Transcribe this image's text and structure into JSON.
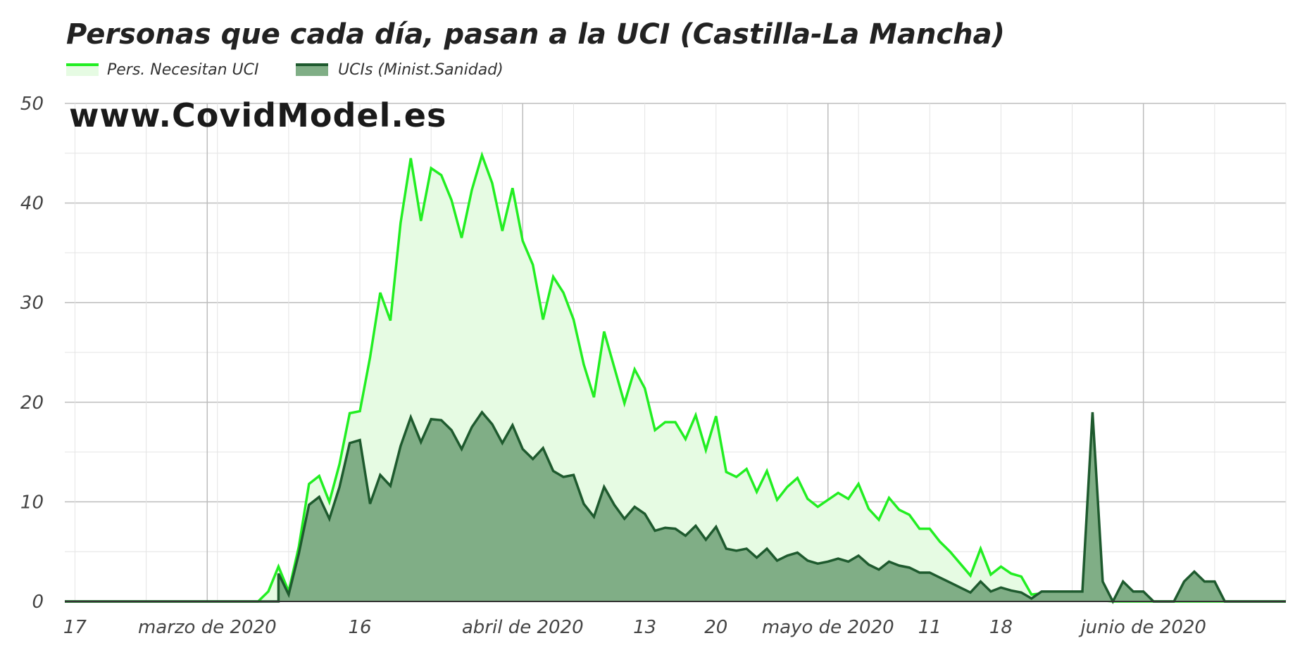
{
  "chart_data": {
    "type": "area",
    "title": "Personas que cada día, pasan a la UCI (Castilla-La Mancha)",
    "watermark": "www.CovidModel.es",
    "xlabel": "",
    "ylabel": "",
    "ylim": [
      0,
      50
    ],
    "yticks": [
      0,
      10,
      20,
      30,
      40,
      50
    ],
    "x_start": "2020-02-16",
    "x_end": "2020-06-15",
    "xticks": [
      {
        "date": "2020-02-17",
        "label": "17"
      },
      {
        "date": "2020-03-01",
        "label": "marzo de 2020"
      },
      {
        "date": "2020-03-16",
        "label": "16"
      },
      {
        "date": "2020-04-01",
        "label": "abril de 2020"
      },
      {
        "date": "2020-04-13",
        "label": "13"
      },
      {
        "date": "2020-04-20",
        "label": "20"
      },
      {
        "date": "2020-05-01",
        "label": "mayo de 2020"
      },
      {
        "date": "2020-05-11",
        "label": "11"
      },
      {
        "date": "2020-05-18",
        "label": "18"
      },
      {
        "date": "2020-06-01",
        "label": "junio de 2020"
      }
    ],
    "major_gridlines": [
      "2020-03-01",
      "2020-04-01",
      "2020-05-01",
      "2020-06-01"
    ],
    "legend_position": "top-left",
    "grid": true,
    "series": [
      {
        "name": "Pers. Necesitan UCI",
        "line_color": "#22ee22",
        "fill_color": "#e6fbe3",
        "data": [
          [
            "2020-02-16",
            0
          ],
          [
            "2020-03-06",
            0
          ],
          [
            "2020-03-07",
            1.0
          ],
          [
            "2020-03-08",
            3.5
          ],
          [
            "2020-03-09",
            1.0
          ],
          [
            "2020-03-10",
            5.5
          ],
          [
            "2020-03-11",
            11.8
          ],
          [
            "2020-03-12",
            12.6
          ],
          [
            "2020-03-13",
            10.0
          ],
          [
            "2020-03-14",
            13.8
          ],
          [
            "2020-03-15",
            18.9
          ],
          [
            "2020-03-16",
            19.1
          ],
          [
            "2020-03-17",
            24.5
          ],
          [
            "2020-03-18",
            31.0
          ],
          [
            "2020-03-19",
            28.2
          ],
          [
            "2020-03-20",
            38.0
          ],
          [
            "2020-03-21",
            44.5
          ],
          [
            "2020-03-22",
            38.2
          ],
          [
            "2020-03-23",
            43.5
          ],
          [
            "2020-03-24",
            42.8
          ],
          [
            "2020-03-25",
            40.3
          ],
          [
            "2020-03-26",
            36.5
          ],
          [
            "2020-03-27",
            41.3
          ],
          [
            "2020-03-28",
            44.8
          ],
          [
            "2020-03-29",
            42.0
          ],
          [
            "2020-03-30",
            37.2
          ],
          [
            "2020-03-31",
            41.5
          ],
          [
            "2020-04-01",
            36.2
          ],
          [
            "2020-04-02",
            33.8
          ],
          [
            "2020-04-03",
            28.3
          ],
          [
            "2020-04-04",
            32.6
          ],
          [
            "2020-04-05",
            31.0
          ],
          [
            "2020-04-06",
            28.3
          ],
          [
            "2020-04-07",
            23.8
          ],
          [
            "2020-04-08",
            20.5
          ],
          [
            "2020-04-09",
            27.1
          ],
          [
            "2020-04-10",
            23.5
          ],
          [
            "2020-04-11",
            19.9
          ],
          [
            "2020-04-12",
            23.3
          ],
          [
            "2020-04-13",
            21.4
          ],
          [
            "2020-04-14",
            17.2
          ],
          [
            "2020-04-15",
            18.0
          ],
          [
            "2020-04-16",
            18.0
          ],
          [
            "2020-04-17",
            16.3
          ],
          [
            "2020-04-18",
            18.7
          ],
          [
            "2020-04-19",
            15.2
          ],
          [
            "2020-04-20",
            18.6
          ],
          [
            "2020-04-21",
            13.0
          ],
          [
            "2020-04-22",
            12.5
          ],
          [
            "2020-04-23",
            13.3
          ],
          [
            "2020-04-24",
            11.0
          ],
          [
            "2020-04-25",
            13.1
          ],
          [
            "2020-04-26",
            10.2
          ],
          [
            "2020-04-27",
            11.5
          ],
          [
            "2020-04-28",
            12.4
          ],
          [
            "2020-04-29",
            10.3
          ],
          [
            "2020-04-30",
            9.5
          ],
          [
            "2020-05-01",
            10.2
          ],
          [
            "2020-05-02",
            10.9
          ],
          [
            "2020-05-03",
            10.3
          ],
          [
            "2020-05-04",
            11.8
          ],
          [
            "2020-05-05",
            9.3
          ],
          [
            "2020-05-06",
            8.2
          ],
          [
            "2020-05-07",
            10.4
          ],
          [
            "2020-05-08",
            9.2
          ],
          [
            "2020-05-09",
            8.7
          ],
          [
            "2020-05-10",
            7.3
          ],
          [
            "2020-05-11",
            7.3
          ],
          [
            "2020-05-12",
            6.0
          ],
          [
            "2020-05-13",
            5.0
          ],
          [
            "2020-05-14",
            3.8
          ],
          [
            "2020-05-15",
            2.6
          ],
          [
            "2020-05-16",
            5.3
          ],
          [
            "2020-05-17",
            2.7
          ],
          [
            "2020-05-18",
            3.5
          ],
          [
            "2020-05-19",
            2.8
          ],
          [
            "2020-05-20",
            2.5
          ],
          [
            "2020-05-21",
            0.7
          ],
          [
            "2020-05-22",
            0.8
          ],
          [
            "2020-05-23",
            0.8
          ],
          [
            "2020-05-24",
            0.5
          ],
          [
            "2020-05-25",
            0.3
          ],
          [
            "2020-05-26",
            0.2
          ],
          [
            "2020-05-27",
            0.1
          ],
          [
            "2020-05-28",
            0.1
          ],
          [
            "2020-05-29",
            0
          ],
          [
            "2020-06-15",
            0
          ]
        ]
      },
      {
        "name": "UCIs (Minist.Sanidad)",
        "line_color": "#1e5a2e",
        "fill_color": "#80ae86",
        "data": [
          [
            "2020-02-16",
            0
          ],
          [
            "2020-03-08",
            0
          ],
          [
            "2020-03-08",
            2.8
          ],
          [
            "2020-03-09",
            0.7
          ],
          [
            "2020-03-10",
            4.8
          ],
          [
            "2020-03-11",
            9.7
          ],
          [
            "2020-03-12",
            10.5
          ],
          [
            "2020-03-13",
            8.3
          ],
          [
            "2020-03-14",
            11.5
          ],
          [
            "2020-03-15",
            15.9
          ],
          [
            "2020-03-16",
            16.2
          ],
          [
            "2020-03-17",
            9.8
          ],
          [
            "2020-03-18",
            12.7
          ],
          [
            "2020-03-19",
            11.6
          ],
          [
            "2020-03-20",
            15.6
          ],
          [
            "2020-03-21",
            18.5
          ],
          [
            "2020-03-22",
            16.0
          ],
          [
            "2020-03-23",
            18.3
          ],
          [
            "2020-03-24",
            18.2
          ],
          [
            "2020-03-25",
            17.2
          ],
          [
            "2020-03-26",
            15.3
          ],
          [
            "2020-03-27",
            17.5
          ],
          [
            "2020-03-28",
            19.0
          ],
          [
            "2020-03-29",
            17.8
          ],
          [
            "2020-03-30",
            15.9
          ],
          [
            "2020-03-31",
            17.7
          ],
          [
            "2020-04-01",
            15.3
          ],
          [
            "2020-04-02",
            14.3
          ],
          [
            "2020-04-03",
            15.4
          ],
          [
            "2020-04-04",
            13.1
          ],
          [
            "2020-04-05",
            12.5
          ],
          [
            "2020-04-06",
            12.7
          ],
          [
            "2020-04-07",
            9.8
          ],
          [
            "2020-04-08",
            8.5
          ],
          [
            "2020-04-09",
            11.5
          ],
          [
            "2020-04-10",
            9.7
          ],
          [
            "2020-04-11",
            8.3
          ],
          [
            "2020-04-12",
            9.5
          ],
          [
            "2020-04-13",
            8.8
          ],
          [
            "2020-04-14",
            7.1
          ],
          [
            "2020-04-15",
            7.4
          ],
          [
            "2020-04-16",
            7.3
          ],
          [
            "2020-04-17",
            6.6
          ],
          [
            "2020-04-18",
            7.6
          ],
          [
            "2020-04-19",
            6.2
          ],
          [
            "2020-04-20",
            7.5
          ],
          [
            "2020-04-21",
            5.3
          ],
          [
            "2020-04-22",
            5.1
          ],
          [
            "2020-04-23",
            5.3
          ],
          [
            "2020-04-24",
            4.4
          ],
          [
            "2020-04-25",
            5.3
          ],
          [
            "2020-04-26",
            4.1
          ],
          [
            "2020-04-27",
            4.6
          ],
          [
            "2020-04-28",
            4.9
          ],
          [
            "2020-04-29",
            4.1
          ],
          [
            "2020-04-30",
            3.8
          ],
          [
            "2020-05-01",
            4.0
          ],
          [
            "2020-05-02",
            4.3
          ],
          [
            "2020-05-03",
            4.0
          ],
          [
            "2020-05-04",
            4.6
          ],
          [
            "2020-05-05",
            3.7
          ],
          [
            "2020-05-06",
            3.2
          ],
          [
            "2020-05-07",
            4.0
          ],
          [
            "2020-05-08",
            3.6
          ],
          [
            "2020-05-09",
            3.4
          ],
          [
            "2020-05-10",
            2.9
          ],
          [
            "2020-05-11",
            2.9
          ],
          [
            "2020-05-12",
            2.4
          ],
          [
            "2020-05-13",
            1.9
          ],
          [
            "2020-05-14",
            1.4
          ],
          [
            "2020-05-15",
            0.9
          ],
          [
            "2020-05-16",
            2.0
          ],
          [
            "2020-05-17",
            1.0
          ],
          [
            "2020-05-18",
            1.4
          ],
          [
            "2020-05-19",
            1.1
          ],
          [
            "2020-05-20",
            0.9
          ],
          [
            "2020-05-21",
            0.3
          ],
          [
            "2020-05-22",
            1.0
          ],
          [
            "2020-05-23",
            1.0
          ],
          [
            "2020-05-24",
            1.0
          ],
          [
            "2020-05-25",
            1.0
          ],
          [
            "2020-05-26",
            1.0
          ],
          [
            "2020-05-27",
            19.0
          ],
          [
            "2020-05-28",
            2.0
          ],
          [
            "2020-05-29",
            0
          ],
          [
            "2020-05-30",
            2.0
          ],
          [
            "2020-05-31",
            1.0
          ],
          [
            "2020-06-01",
            1.0
          ],
          [
            "2020-06-02",
            0
          ],
          [
            "2020-06-03",
            0
          ],
          [
            "2020-06-04",
            0
          ],
          [
            "2020-06-05",
            2.0
          ],
          [
            "2020-06-06",
            3.0
          ],
          [
            "2020-06-07",
            2.0
          ],
          [
            "2020-06-08",
            2.0
          ],
          [
            "2020-06-09",
            0
          ],
          [
            "2020-06-15",
            0
          ]
        ]
      }
    ]
  }
}
